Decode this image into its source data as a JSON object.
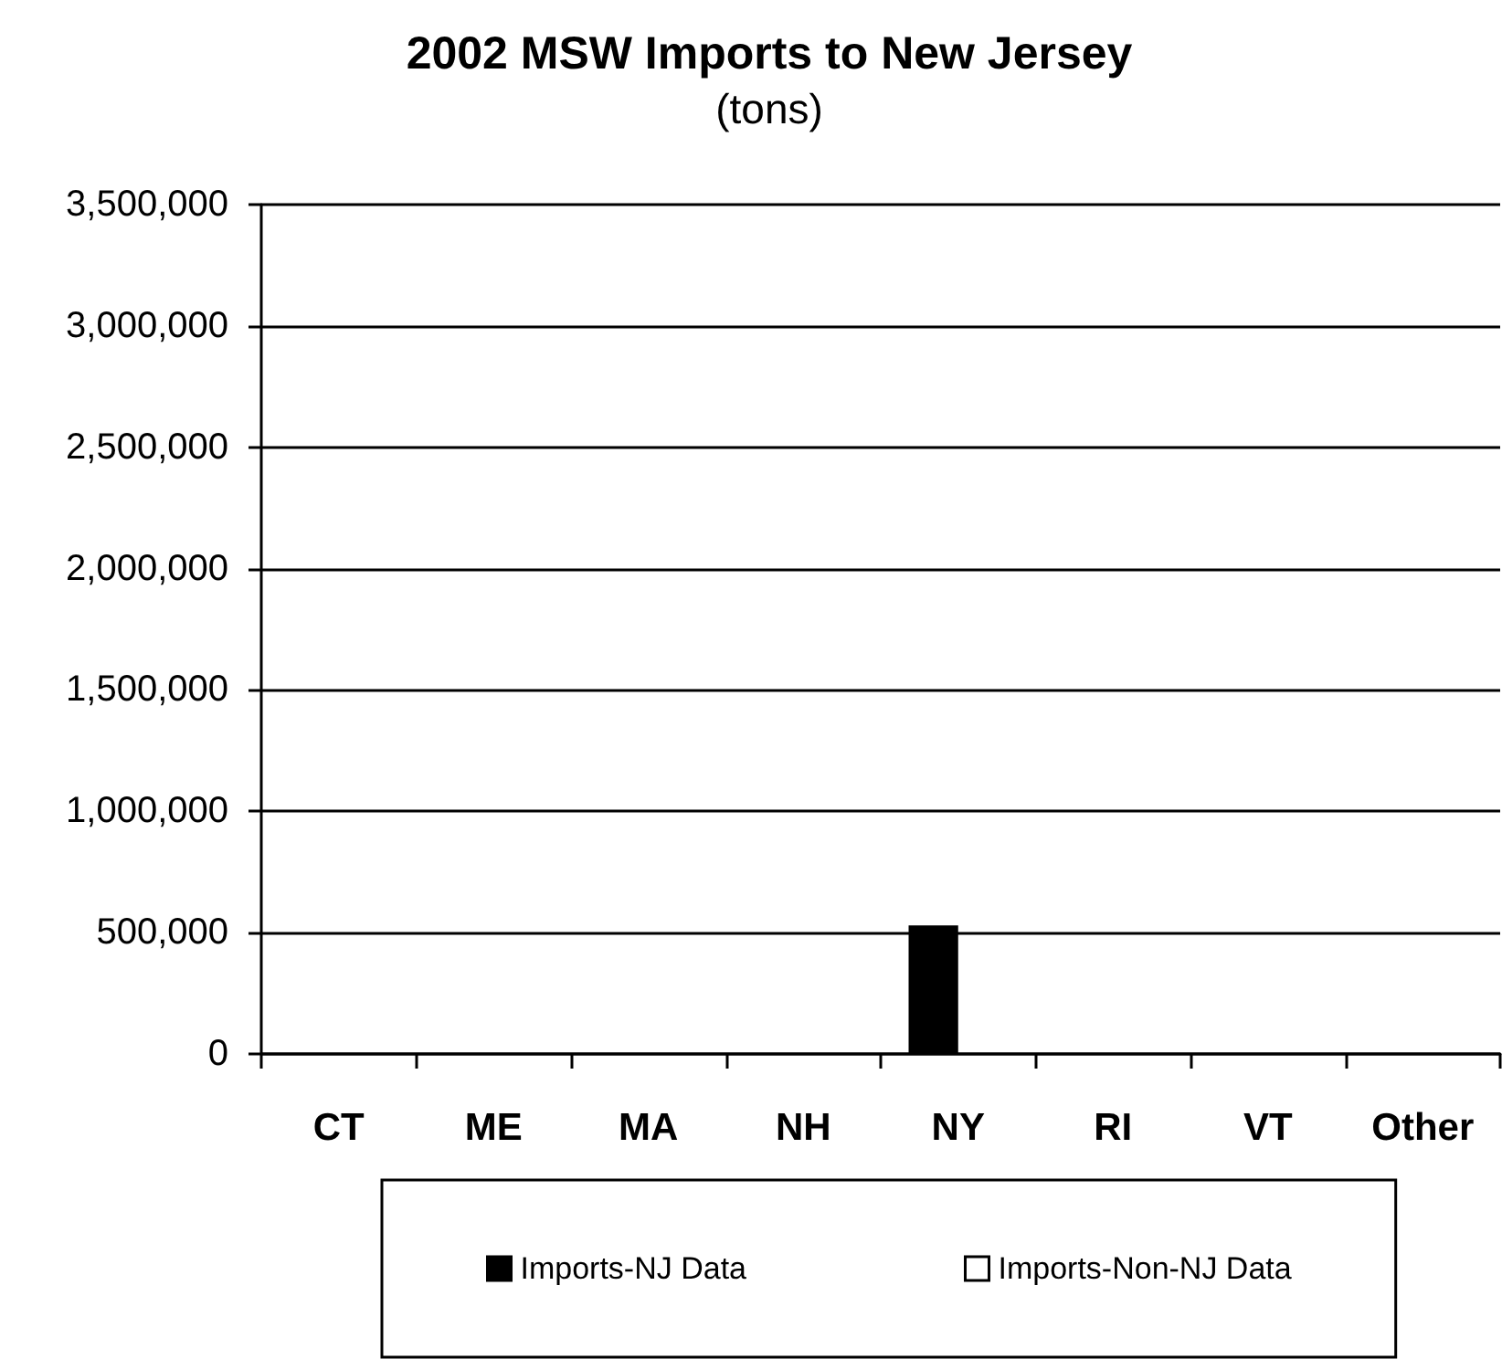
{
  "chart_data": {
    "type": "bar",
    "title": "2002 MSW Imports to New Jersey",
    "subtitle": "(tons)",
    "categories": [
      "CT",
      "ME",
      "MA",
      "NH",
      "NY",
      "RI",
      "VT",
      "Other"
    ],
    "series": [
      {
        "name": "Imports-NJ Data",
        "color": "#000000",
        "values": [
          null,
          null,
          null,
          null,
          530000,
          null,
          null,
          null
        ]
      },
      {
        "name": "Imports-Non-NJ Data",
        "color": "#ffffff",
        "values": [
          null,
          null,
          null,
          null,
          null,
          null,
          null,
          null
        ]
      }
    ],
    "ylim": [
      0,
      3500000
    ],
    "yticks": [
      0,
      {
        "value": 500000,
        "label": "500,000"
      },
      {
        "value": 1000000,
        "label": "1,000,000"
      },
      {
        "value": 1500000,
        "label": "1,500,000"
      },
      {
        "value": 2000000,
        "label": "2,000,000"
      },
      {
        "value": 2500000,
        "label": "2,500,000"
      },
      {
        "value": 3000000,
        "label": "3,000,000"
      },
      {
        "value": 3500000,
        "label": "3,500,000"
      }
    ],
    "grid": "y",
    "legend": "bottom"
  }
}
